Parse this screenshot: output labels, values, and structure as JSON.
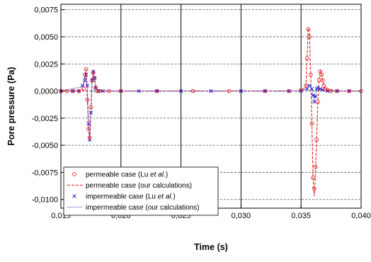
{
  "chart_data": {
    "type": "line",
    "title": "",
    "xlabel": "Time (s)",
    "ylabel": "Pore pressure (Pa)",
    "xlim": [
      0.015,
      0.04
    ],
    "ylim": [
      -0.0108,
      0.008
    ],
    "x_ticks": [
      0.015,
      0.02,
      0.025,
      0.03,
      0.035,
      0.04
    ],
    "x_tick_labels": [
      "0,015",
      "0,020",
      "0,025",
      "0,030",
      "0,035",
      "0,040"
    ],
    "y_ticks": [
      0.0075,
      0.005,
      0.0025,
      0.0,
      -0.0025,
      -0.005,
      -0.0075,
      -0.01
    ],
    "y_tick_labels": [
      "0,0075",
      "0,0050",
      "0,0025",
      "0,0000",
      "-0,0025",
      "-0,0050",
      "-0,0075",
      "-0,0100"
    ],
    "grid": {
      "vertical": "solid",
      "horizontal": "dashed"
    },
    "legend_position": "bottom-left",
    "series": [
      {
        "name": "permeable case (Lu et al.)",
        "name_plain": "permeable case (Lu ",
        "name_italic": "et al.",
        "name_suffix": ")",
        "style": "circle-marker",
        "color": "#e02020",
        "x": [
          0.015,
          0.0155,
          0.016,
          0.0165,
          0.0169,
          0.017,
          0.0171,
          0.0172,
          0.0173,
          0.0174,
          0.0175,
          0.0176,
          0.0177,
          0.0178,
          0.0179,
          0.018,
          0.0182,
          0.019,
          0.02,
          0.023,
          0.026,
          0.029,
          0.032,
          0.034,
          0.035,
          0.0354,
          0.0355,
          0.0356,
          0.0357,
          0.0358,
          0.0359,
          0.036,
          0.0361,
          0.0362,
          0.0363,
          0.0364,
          0.0365,
          0.0366,
          0.0367,
          0.0368,
          0.0369,
          0.037,
          0.0372,
          0.0375,
          0.038,
          0.039,
          0.04
        ],
        "y": [
          0.0,
          0.0,
          0.0,
          0.0,
          0.0002,
          0.0015,
          0.002,
          -0.0008,
          -0.0035,
          -0.0043,
          -0.0015,
          0.001,
          0.0017,
          0.0012,
          0.0003,
          0.0,
          0.0,
          0.0,
          0.0,
          0.0,
          0.0,
          0.0,
          0.0,
          0.0,
          0.0001,
          0.0005,
          0.003,
          0.0057,
          0.005,
          0.0015,
          -0.003,
          -0.008,
          -0.009,
          -0.007,
          -0.0045,
          -0.001,
          0.001,
          0.0018,
          0.0015,
          0.001,
          0.0005,
          0.0002,
          0.0001,
          0.0,
          0.0,
          0.0,
          0.0
        ]
      },
      {
        "name": "permeable case (our calculations)",
        "style": "dashed-line",
        "color": "#e02020",
        "x": [
          0.015,
          0.0168,
          0.017,
          0.0171,
          0.0172,
          0.0173,
          0.0174,
          0.0175,
          0.0176,
          0.0177,
          0.0178,
          0.0179,
          0.018,
          0.0185,
          0.02,
          0.03,
          0.035,
          0.0354,
          0.0355,
          0.0356,
          0.0357,
          0.0358,
          0.0359,
          0.036,
          0.0361,
          0.0362,
          0.0363,
          0.0364,
          0.0365,
          0.0366,
          0.0367,
          0.0368,
          0.0369,
          0.037,
          0.0372,
          0.038,
          0.04
        ],
        "y": [
          0.0,
          0.0,
          0.0014,
          0.002,
          -0.0005,
          -0.0033,
          -0.0045,
          -0.0018,
          0.0009,
          0.0018,
          0.0012,
          0.0004,
          0.0001,
          0.0,
          0.0,
          0.0,
          0.0,
          0.0004,
          0.003,
          0.0058,
          0.0052,
          0.0018,
          -0.003,
          -0.0082,
          -0.0097,
          -0.0075,
          -0.0045,
          -0.0012,
          0.001,
          0.0019,
          0.0016,
          0.001,
          0.0005,
          0.0002,
          0.0001,
          0.0,
          0.0
        ]
      },
      {
        "name": "impermeable case (Lu et al.)",
        "name_plain": "impermeable case (Lu ",
        "name_italic": "et al.",
        "name_suffix": ")",
        "style": "x-marker",
        "color": "#1a1acc",
        "x": [
          0.015,
          0.016,
          0.0165,
          0.0168,
          0.017,
          0.0171,
          0.0172,
          0.0173,
          0.0174,
          0.0175,
          0.0176,
          0.0177,
          0.0178,
          0.0179,
          0.0181,
          0.0185,
          0.02,
          0.0215,
          0.023,
          0.025,
          0.0275,
          0.03,
          0.032,
          0.034,
          0.035,
          0.0355,
          0.0357,
          0.0359,
          0.036,
          0.0361,
          0.0362,
          0.0363,
          0.0364,
          0.0366,
          0.0368,
          0.0372,
          0.038,
          0.039
        ],
        "y": [
          0.0,
          0.0,
          0.0,
          0.0005,
          0.001,
          0.0015,
          0.0005,
          -0.003,
          -0.0045,
          -0.002,
          0.001,
          0.0018,
          0.0012,
          0.0003,
          0.0,
          0.0,
          0.0,
          0.0,
          0.0,
          0.0,
          0.0,
          0.0,
          0.0,
          0.0,
          0.0,
          0.0002,
          0.0005,
          0.0002,
          -0.0004,
          -0.001,
          -0.0005,
          0.0002,
          0.0003,
          0.0002,
          0.0001,
          0.0,
          0.0,
          0.0
        ]
      },
      {
        "name": "impermeable case (our calculations)",
        "style": "dotted-line",
        "color": "#1a1acc",
        "x": [
          0.015,
          0.0168,
          0.017,
          0.0171,
          0.0172,
          0.0173,
          0.0174,
          0.0175,
          0.0176,
          0.0177,
          0.0178,
          0.0179,
          0.0181,
          0.02,
          0.035,
          0.0355,
          0.0357,
          0.0359,
          0.036,
          0.0361,
          0.0362,
          0.0363,
          0.0364,
          0.0366,
          0.037,
          0.04
        ],
        "y": [
          0.0,
          0.0004,
          0.001,
          0.0016,
          0.0004,
          -0.0032,
          -0.0046,
          -0.002,
          0.001,
          0.0019,
          0.0012,
          0.0003,
          0.0,
          0.0,
          0.0,
          0.0002,
          0.0005,
          0.0002,
          -0.0004,
          -0.001,
          -0.0005,
          0.0002,
          0.0003,
          0.0002,
          0.0,
          0.0
        ]
      }
    ]
  }
}
